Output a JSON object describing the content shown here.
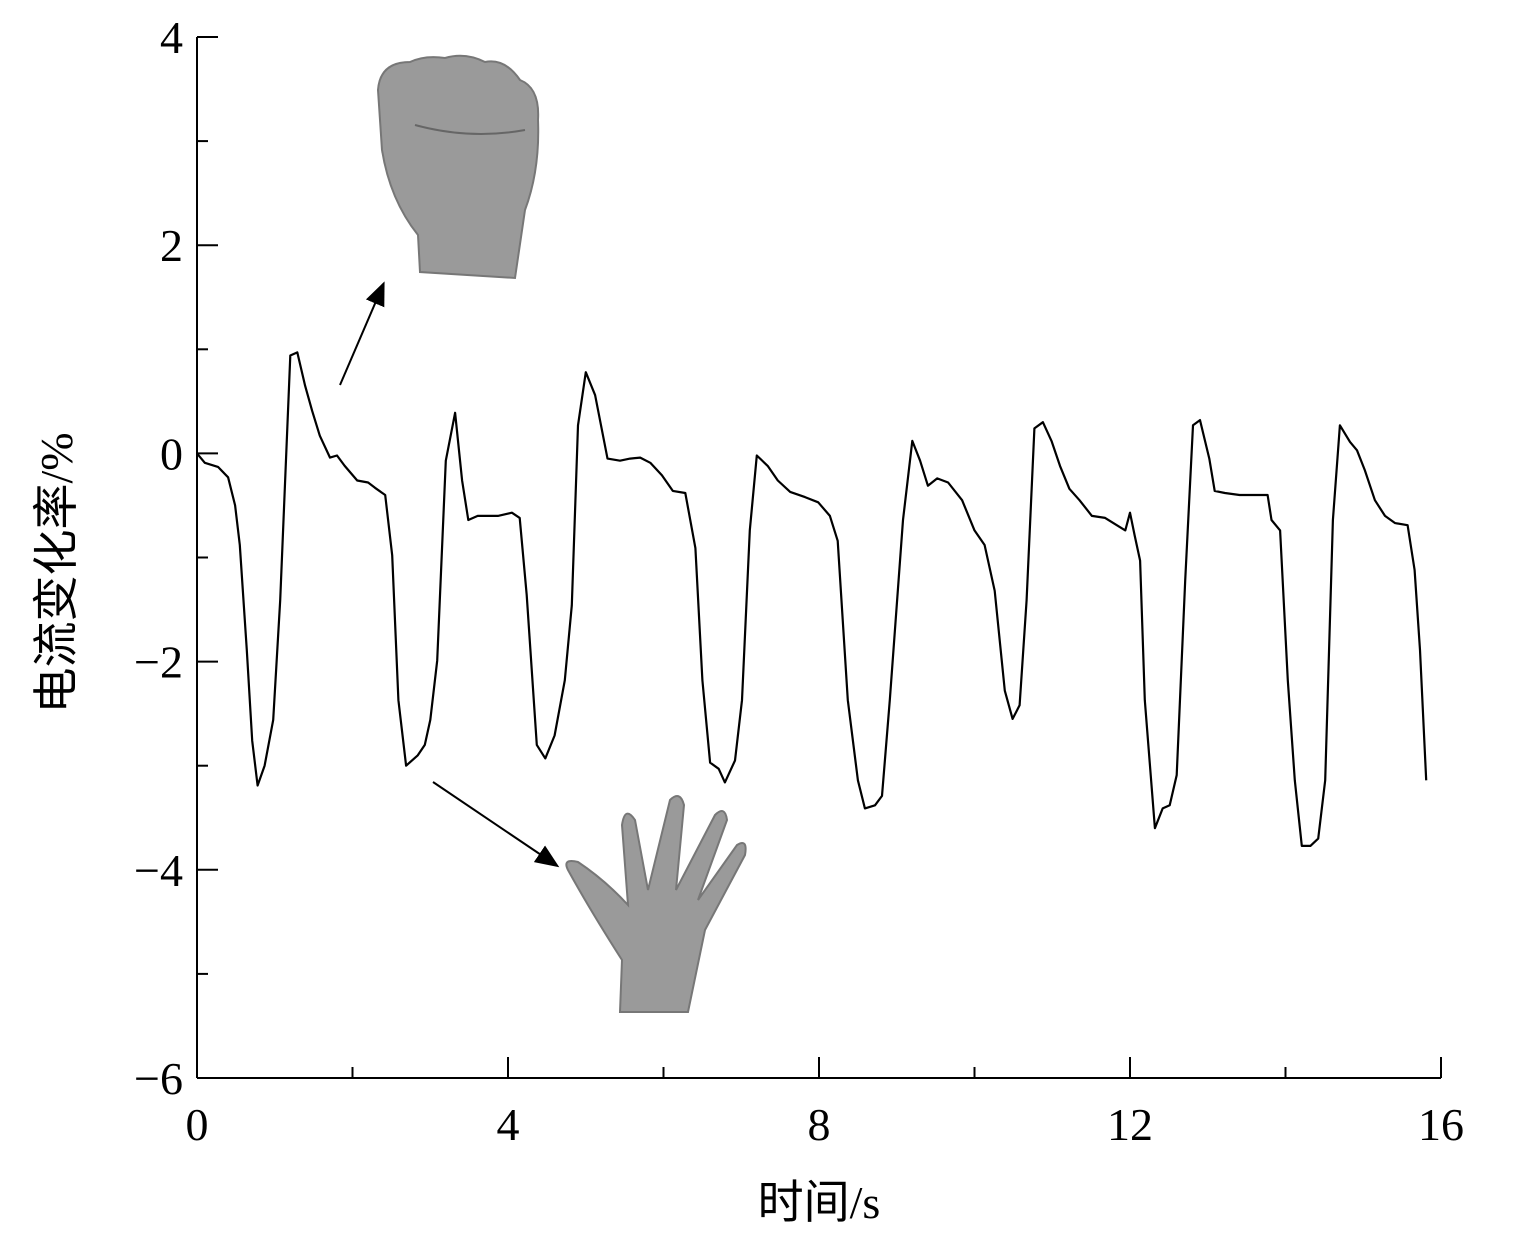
{
  "chart_data": {
    "type": "line",
    "x_label": "时间/s",
    "y_label": "电流变化率/%",
    "xlim": [
      0,
      16
    ],
    "ylim": [
      -6,
      4
    ],
    "xticks": [
      0,
      4,
      8,
      12,
      16
    ],
    "xminor": [
      2,
      6,
      10,
      14
    ],
    "yticks": [
      {
        "value": -6,
        "label": "−6"
      },
      {
        "value": -4,
        "label": "−4"
      },
      {
        "value": -2,
        "label": "−2"
      },
      0,
      2,
      4
    ],
    "yminor": [
      -5,
      -3,
      -1,
      1,
      3
    ],
    "series": [
      {
        "color": "#000000",
        "x": [
          0,
          0.1,
          0.27,
          0.4,
          0.49,
          0.55,
          0.64,
          0.71,
          0.78,
          0.87,
          0.98,
          1.07,
          1.2,
          1.29,
          1.39,
          1.48,
          1.58,
          1.71,
          1.8,
          1.9,
          2.06,
          2.2,
          2.29,
          2.42,
          2.51,
          2.59,
          2.69,
          2.84,
          2.93,
          3.0,
          3.09,
          3.2,
          3.32,
          3.41,
          3.49,
          3.61,
          3.87,
          4.05,
          4.15,
          4.24,
          4.37,
          4.48,
          4.6,
          4.73,
          4.82,
          4.9,
          5.0,
          5.12,
          5.28,
          5.44,
          5.57,
          5.7,
          5.83,
          5.98,
          6.12,
          6.28,
          6.41,
          6.5,
          6.6,
          6.71,
          6.79,
          6.92,
          7.01,
          7.11,
          7.2,
          7.34,
          7.47,
          7.63,
          7.82,
          7.99,
          8.14,
          8.24,
          8.37,
          8.5,
          8.59,
          8.72,
          8.81,
          8.91,
          9.08,
          9.2,
          9.3,
          9.4,
          9.52,
          9.66,
          9.84,
          10.0,
          10.13,
          10.26,
          10.39,
          10.49,
          10.58,
          10.67,
          10.77,
          10.88,
          10.99,
          11.1,
          11.22,
          11.35,
          11.51,
          11.68,
          11.83,
          11.94,
          12.0,
          12.06,
          12.13,
          12.19,
          12.32,
          12.42,
          12.51,
          12.6,
          12.71,
          12.81,
          12.9,
          13.02,
          13.09,
          13.22,
          13.41,
          13.64,
          13.77,
          13.82,
          13.93,
          14.03,
          14.12,
          14.21,
          14.32,
          14.42,
          14.51,
          14.61,
          14.7,
          14.83,
          14.92,
          15.02,
          15.15,
          15.28,
          15.41,
          15.57,
          15.66,
          15.73,
          15.81
        ],
        "values": [
          0,
          -0.09,
          -0.13,
          -0.23,
          -0.5,
          -0.88,
          -1.89,
          -2.76,
          -3.19,
          -3.0,
          -2.56,
          -1.41,
          0.94,
          0.97,
          0.65,
          0.41,
          0.17,
          -0.04,
          -0.02,
          -0.12,
          -0.26,
          -0.28,
          -0.33,
          -0.4,
          -0.98,
          -2.37,
          -3.0,
          -2.9,
          -2.8,
          -2.56,
          -1.99,
          -0.07,
          0.39,
          -0.26,
          -0.64,
          -0.6,
          -0.6,
          -0.57,
          -0.62,
          -1.36,
          -2.8,
          -2.93,
          -2.71,
          -2.18,
          -1.46,
          0.27,
          0.78,
          0.56,
          -0.05,
          -0.07,
          -0.05,
          -0.04,
          -0.09,
          -0.21,
          -0.36,
          -0.38,
          -0.91,
          -2.18,
          -2.97,
          -3.03,
          -3.16,
          -2.95,
          -2.37,
          -0.74,
          -0.02,
          -0.12,
          -0.26,
          -0.37,
          -0.42,
          -0.47,
          -0.6,
          -0.84,
          -2.37,
          -3.14,
          -3.41,
          -3.38,
          -3.29,
          -2.37,
          -0.64,
          0.12,
          -0.07,
          -0.31,
          -0.24,
          -0.28,
          -0.45,
          -0.74,
          -0.88,
          -1.32,
          -2.28,
          -2.55,
          -2.42,
          -1.41,
          0.24,
          0.3,
          0.12,
          -0.12,
          -0.34,
          -0.45,
          -0.6,
          -0.62,
          -0.69,
          -0.74,
          -0.57,
          -0.79,
          -1.03,
          -2.37,
          -3.6,
          -3.41,
          -3.38,
          -3.09,
          -1.22,
          0.27,
          0.32,
          -0.05,
          -0.36,
          -0.38,
          -0.4,
          -0.4,
          -0.4,
          -0.64,
          -0.74,
          -2.18,
          -3.14,
          -3.77,
          -3.77,
          -3.7,
          -3.14,
          -0.64,
          0.27,
          0.11,
          0.03,
          -0.16,
          -0.45,
          -0.6,
          -0.67,
          -0.69,
          -1.12,
          -1.89,
          -3.14
        ]
      }
    ]
  }
}
